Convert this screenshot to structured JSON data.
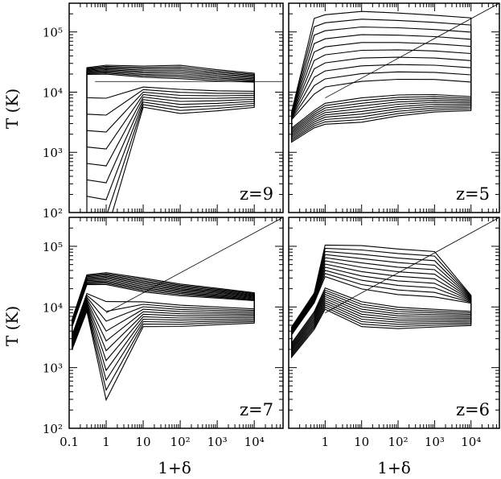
{
  "figure": {
    "ylabel": "T (K)",
    "xlabel": "1+δ"
  },
  "axes": {
    "x_scale": "log",
    "y_scale": "log",
    "xlim": [
      0.1,
      60000
    ],
    "ylim": [
      100,
      300000
    ],
    "x_tick_labels": [
      "0.1",
      "1",
      "10",
      "10²",
      "10³",
      "10⁴"
    ],
    "y_tick_labels": [
      "10²",
      "10³",
      "10⁴",
      "10⁵"
    ]
  },
  "chart_data": [
    {
      "type": "contour",
      "panel": "top-left",
      "label": "z=9",
      "equilibrium_line": true,
      "contour_levels": 9,
      "ridge": [
        [
          0.3,
          17000
        ],
        [
          1,
          17000
        ],
        [
          10,
          15000
        ],
        [
          100,
          14000
        ],
        [
          1000,
          13000
        ],
        [
          10000,
          12500
        ]
      ],
      "low_temperature_lobe": {
        "x_range": [
          0.3,
          3
        ],
        "t_min": 100
      }
    },
    {
      "type": "contour",
      "panel": "top-right",
      "label": "z=5",
      "equilibrium_line": true,
      "contour_levels": 10,
      "ridge": [
        [
          0.12,
          3000
        ],
        [
          0.5,
          6000
        ],
        [
          1,
          8000
        ],
        [
          10,
          10000
        ],
        [
          100,
          11000
        ],
        [
          1000,
          11000
        ],
        [
          10000,
          10000
        ]
      ],
      "hot_tail": {
        "x_range": [
          1,
          1000
        ],
        "t_max": 200000
      }
    },
    {
      "type": "contour",
      "panel": "bottom-left",
      "label": "z=7",
      "equilibrium_line": true,
      "contour_levels": 11,
      "ridge": [
        [
          0.12,
          4000
        ],
        [
          0.3,
          20000
        ],
        [
          1,
          20000
        ],
        [
          10,
          15000
        ],
        [
          100,
          13000
        ],
        [
          1000,
          12000
        ],
        [
          10000,
          11000
        ]
      ],
      "low_temperature_lobe": {
        "x_range": [
          0.5,
          3
        ],
        "t_min": 800
      }
    },
    {
      "type": "contour",
      "panel": "bottom-right",
      "label": "z=6",
      "equilibrium_line": true,
      "contour_levels": 11,
      "ridge": [
        [
          0.12,
          3000
        ],
        [
          0.5,
          10000
        ],
        [
          1,
          25000
        ],
        [
          10,
          15000
        ],
        [
          100,
          12000
        ],
        [
          1000,
          11000
        ],
        [
          10000,
          10000
        ]
      ],
      "hot_tail": {
        "x_range": [
          3,
          300
        ],
        "t_max": 70000
      }
    }
  ]
}
